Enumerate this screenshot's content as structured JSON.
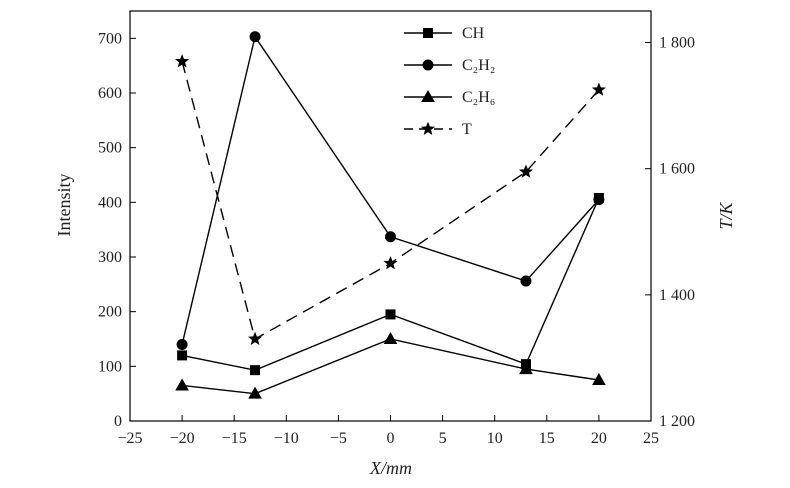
{
  "chart_data": {
    "type": "line",
    "xlabel": "X/mm",
    "ylabel": "Intensity",
    "y2label": "T/K",
    "xlim": [
      -25,
      25
    ],
    "ylim": [
      0,
      750
    ],
    "y2lim": [
      1200,
      1850
    ],
    "xticks": [
      -25,
      -20,
      -15,
      -10,
      -5,
      0,
      5,
      10,
      15,
      20,
      25
    ],
    "yticks": [
      0,
      100,
      200,
      300,
      400,
      500,
      600,
      700
    ],
    "y2ticks": [
      1200,
      1400,
      1600,
      1800
    ],
    "y2tick_labels": [
      "1 200",
      "1 400",
      "1 600",
      "1 800"
    ],
    "legend_position": "top-center",
    "grid": false,
    "series": [
      {
        "name": "CH",
        "axis": "left",
        "marker": "square",
        "line": "solid",
        "color": "#000000",
        "x": [
          -20,
          -13,
          0,
          13,
          20
        ],
        "y": [
          120,
          93,
          195,
          104,
          408
        ]
      },
      {
        "name": "C₂H₂",
        "axis": "left",
        "marker": "circle",
        "line": "solid",
        "color": "#000000",
        "x": [
          -20,
          -13,
          0,
          13,
          20
        ],
        "y": [
          140,
          703,
          337,
          256,
          405
        ]
      },
      {
        "name": "C₂H₆",
        "axis": "left",
        "marker": "triangle",
        "line": "solid",
        "color": "#000000",
        "x": [
          -20,
          -13,
          0,
          13,
          20
        ],
        "y": [
          65,
          50,
          150,
          95,
          75
        ]
      },
      {
        "name": "T",
        "axis": "right",
        "marker": "star",
        "line": "dashed",
        "color": "#000000",
        "x": [
          -20,
          -13,
          0,
          13,
          20
        ],
        "y": [
          1770,
          1330,
          1450,
          1595,
          1725
        ]
      }
    ]
  }
}
